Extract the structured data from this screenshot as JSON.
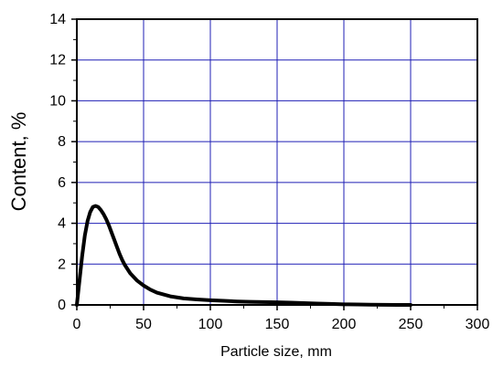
{
  "chart_data": {
    "type": "line",
    "title": "",
    "xlabel": "Particle size, mm",
    "ylabel": "Content, %",
    "xlim": [
      0,
      300
    ],
    "ylim": [
      0,
      14
    ],
    "xticks": [
      0,
      50,
      100,
      150,
      200,
      250,
      300
    ],
    "yticks": [
      0,
      2,
      4,
      6,
      8,
      10,
      12,
      14
    ],
    "xtick_labels": [
      "0",
      "50",
      "100",
      "150",
      "200",
      "250",
      "300"
    ],
    "ytick_labels": [
      "0",
      "2",
      "4",
      "6",
      "8",
      "10",
      "12",
      "14"
    ],
    "grid": true,
    "legend": "none",
    "colors": {
      "line": "#000000",
      "grid": "#1f1fb5",
      "axes": "#000000"
    },
    "series": [
      {
        "x": [
          0,
          2,
          4,
          6,
          8,
          10,
          12,
          14,
          16,
          18,
          20,
          22,
          24,
          26,
          28,
          30,
          32,
          34,
          36,
          38,
          40,
          45,
          50,
          55,
          60,
          70,
          80,
          90,
          100,
          110,
          120,
          130,
          140,
          150,
          160,
          170,
          180,
          190,
          200,
          210,
          220,
          230,
          240,
          250
        ],
        "y": [
          0,
          1.2,
          2.4,
          3.4,
          4.1,
          4.55,
          4.8,
          4.85,
          4.8,
          4.65,
          4.45,
          4.2,
          3.9,
          3.55,
          3.2,
          2.85,
          2.5,
          2.2,
          1.95,
          1.75,
          1.55,
          1.2,
          0.95,
          0.75,
          0.6,
          0.42,
          0.32,
          0.27,
          0.23,
          0.2,
          0.17,
          0.15,
          0.14,
          0.13,
          0.11,
          0.09,
          0.07,
          0.05,
          0.03,
          0.02,
          0.01,
          0.005,
          0.0,
          0.0
        ]
      }
    ]
  }
}
